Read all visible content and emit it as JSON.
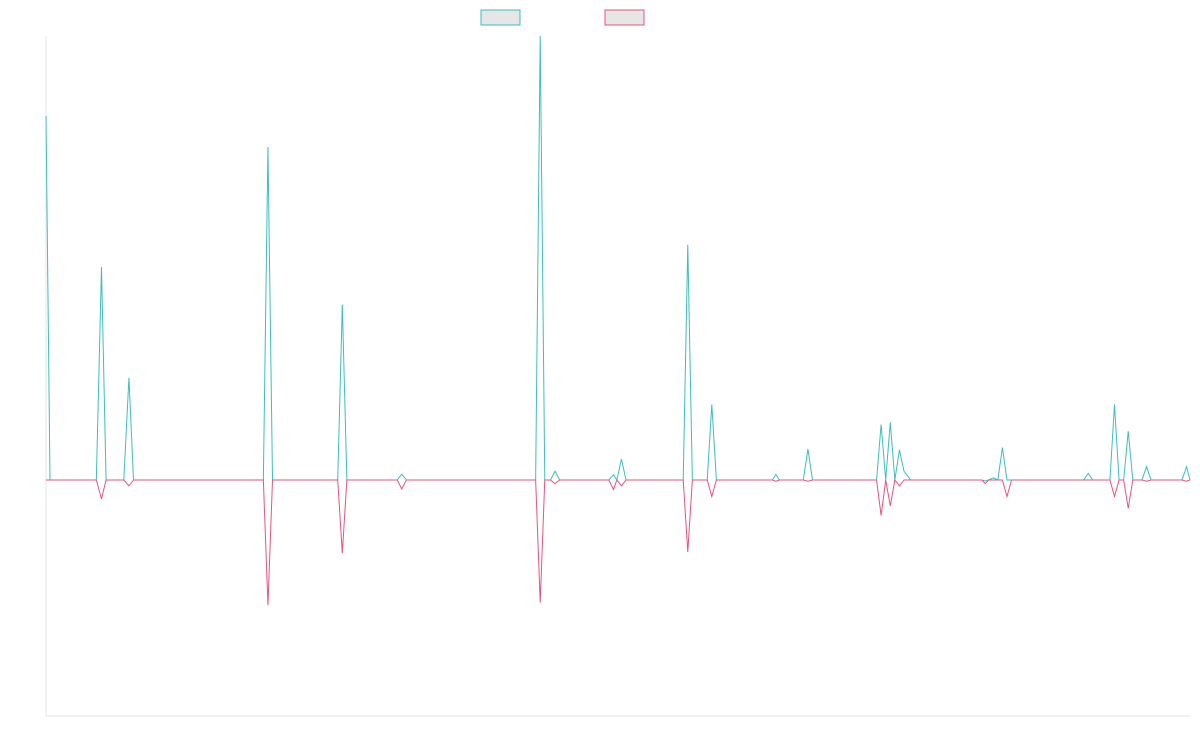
{
  "chart_data": {
    "type": "line",
    "title": "",
    "xlabel": "",
    "ylabel": "",
    "grid": false,
    "legend_position": "top-center",
    "x_range": [
      0,
      1
    ],
    "y_range": [
      -1.0,
      1.0
    ],
    "baseline": 0,
    "series": [
      {
        "color": "#3bbfbf",
        "fill": "#e6e6e6",
        "points": [
          [
            0,
            0.82
          ],
          [
            0.0035,
            0
          ],
          [
            0.044,
            0
          ],
          [
            0.0485,
            0.48
          ],
          [
            0.0525,
            0
          ],
          [
            0.068,
            0
          ],
          [
            0.0725,
            0.23
          ],
          [
            0.0765,
            0
          ],
          [
            0.19,
            0
          ],
          [
            0.194,
            0.75
          ],
          [
            0.198,
            0
          ],
          [
            0.255,
            0
          ],
          [
            0.259,
            0.395
          ],
          [
            0.263,
            0
          ],
          [
            0.307,
            0
          ],
          [
            0.311,
            0.013
          ],
          [
            0.315,
            0
          ],
          [
            0.428,
            0
          ],
          [
            0.432,
            1.0
          ],
          [
            0.436,
            0
          ],
          [
            0.441,
            0
          ],
          [
            0.445,
            0.02
          ],
          [
            0.449,
            0
          ],
          [
            0.492,
            0
          ],
          [
            0.496,
            0.012
          ],
          [
            0.499,
            0
          ],
          [
            0.503,
            0.047
          ],
          [
            0.507,
            0
          ],
          [
            0.557,
            0
          ],
          [
            0.561,
            0.53
          ],
          [
            0.565,
            0
          ],
          [
            0.578,
            0
          ],
          [
            0.582,
            0.17
          ],
          [
            0.586,
            0
          ],
          [
            0.635,
            0
          ],
          [
            0.638,
            0.013
          ],
          [
            0.641,
            0
          ],
          [
            0.662,
            0
          ],
          [
            0.666,
            0.07
          ],
          [
            0.67,
            0
          ],
          [
            0.726,
            0
          ],
          [
            0.73,
            0.125
          ],
          [
            0.734,
            0
          ],
          [
            0.738,
            0.13
          ],
          [
            0.742,
            0
          ],
          [
            0.746,
            0.068
          ],
          [
            0.75,
            0.02
          ],
          [
            0.756,
            0
          ],
          [
            0.818,
            0
          ],
          [
            0.821,
            -0.004
          ],
          [
            0.824,
            0
          ],
          [
            0.828,
            0.005
          ],
          [
            0.832,
            0
          ],
          [
            0.836,
            0.073
          ],
          [
            0.84,
            0
          ],
          [
            0.907,
            0
          ],
          [
            0.911,
            0.015
          ],
          [
            0.915,
            0
          ],
          [
            0.93,
            0
          ],
          [
            0.934,
            0.17
          ],
          [
            0.938,
            0
          ],
          [
            0.942,
            0
          ],
          [
            0.946,
            0.11
          ],
          [
            0.95,
            0
          ],
          [
            0.958,
            0
          ],
          [
            0.962,
            0.03
          ],
          [
            0.966,
            0
          ],
          [
            0.993,
            0
          ],
          [
            0.997,
            0.03
          ],
          [
            1.0,
            0
          ]
        ]
      },
      {
        "color": "#f0507a",
        "fill": "#e6e6e6",
        "points": [
          [
            0,
            0
          ],
          [
            0.044,
            0
          ],
          [
            0.0485,
            -0.08
          ],
          [
            0.0525,
            0
          ],
          [
            0.068,
            0
          ],
          [
            0.0725,
            -0.025
          ],
          [
            0.0765,
            0
          ],
          [
            0.19,
            0
          ],
          [
            0.194,
            -0.53
          ],
          [
            0.198,
            0
          ],
          [
            0.255,
            0
          ],
          [
            0.259,
            -0.31
          ],
          [
            0.263,
            0
          ],
          [
            0.307,
            0
          ],
          [
            0.311,
            -0.038
          ],
          [
            0.315,
            0
          ],
          [
            0.428,
            0
          ],
          [
            0.432,
            -0.52
          ],
          [
            0.436,
            0
          ],
          [
            0.441,
            0
          ],
          [
            0.445,
            -0.016
          ],
          [
            0.449,
            0
          ],
          [
            0.492,
            0
          ],
          [
            0.496,
            -0.04
          ],
          [
            0.499,
            0
          ],
          [
            0.503,
            -0.025
          ],
          [
            0.507,
            0
          ],
          [
            0.557,
            0
          ],
          [
            0.561,
            -0.305
          ],
          [
            0.565,
            0
          ],
          [
            0.578,
            0
          ],
          [
            0.582,
            -0.07
          ],
          [
            0.586,
            0
          ],
          [
            0.635,
            0
          ],
          [
            0.638,
            -0.005
          ],
          [
            0.641,
            0
          ],
          [
            0.662,
            0
          ],
          [
            0.666,
            -0.005
          ],
          [
            0.67,
            0
          ],
          [
            0.726,
            0
          ],
          [
            0.73,
            -0.15
          ],
          [
            0.734,
            0
          ],
          [
            0.738,
            -0.11
          ],
          [
            0.742,
            0
          ],
          [
            0.746,
            -0.025
          ],
          [
            0.75,
            0
          ],
          [
            0.818,
            0
          ],
          [
            0.821,
            -0.015
          ],
          [
            0.824,
            0
          ],
          [
            0.836,
            0
          ],
          [
            0.84,
            -0.07
          ],
          [
            0.844,
            0
          ],
          [
            0.93,
            0
          ],
          [
            0.934,
            -0.07
          ],
          [
            0.938,
            0
          ],
          [
            0.942,
            0
          ],
          [
            0.946,
            -0.12
          ],
          [
            0.95,
            0
          ],
          [
            0.958,
            0
          ],
          [
            0.962,
            -0.005
          ],
          [
            0.966,
            0
          ],
          [
            0.993,
            0
          ],
          [
            0.997,
            -0.005
          ],
          [
            1.0,
            0
          ]
        ]
      }
    ]
  }
}
